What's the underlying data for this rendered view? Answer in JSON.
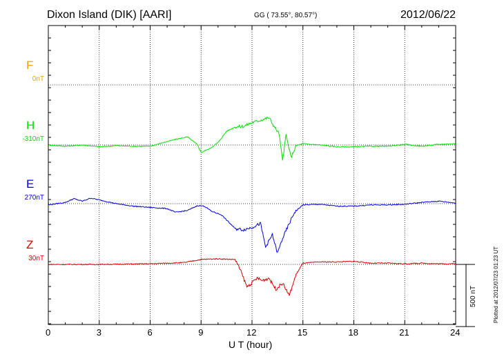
{
  "header": {
    "station": "Dixon Island (DIK)  [AARI]",
    "coords": "GG ( 73.55°,  80.57°)",
    "date": "2012/06/22"
  },
  "plotted_note": "Plotted at 2012/07/23 01:23 UT",
  "scale_label": "500 nT",
  "chart_data": {
    "type": "line",
    "xlabel": "U T (hour)",
    "xlim": [
      0,
      24
    ],
    "xticks": [
      "0",
      "3",
      "6",
      "9",
      "12",
      "15",
      "18",
      "21",
      "24"
    ],
    "grid": true,
    "scale_nT": 500,
    "channels": [
      {
        "letter": "F",
        "base": "0nT",
        "color": "#f5a000",
        "points": []
      },
      {
        "letter": "H",
        "base": "-310nT",
        "color": "#00e000",
        "points": [
          [
            0,
            0
          ],
          [
            1,
            -10
          ],
          [
            2,
            0
          ],
          [
            3,
            -15
          ],
          [
            4,
            -5
          ],
          [
            5,
            -10
          ],
          [
            6,
            -10
          ],
          [
            6.8,
            20
          ],
          [
            7.5,
            45
          ],
          [
            8.2,
            65
          ],
          [
            8.8,
            0
          ],
          [
            9.0,
            -60
          ],
          [
            9.5,
            -30
          ],
          [
            10.0,
            20
          ],
          [
            10.5,
            110
          ],
          [
            11.0,
            145
          ],
          [
            11.5,
            150
          ],
          [
            12.0,
            180
          ],
          [
            12.5,
            200
          ],
          [
            13.0,
            220
          ],
          [
            13.3,
            150
          ],
          [
            13.6,
            90
          ],
          [
            13.8,
            -130
          ],
          [
            14.0,
            80
          ],
          [
            14.3,
            -100
          ],
          [
            14.6,
            -5
          ],
          [
            15.0,
            10
          ],
          [
            16,
            0
          ],
          [
            17,
            -15
          ],
          [
            18,
            -15
          ],
          [
            19,
            -10
          ],
          [
            20,
            -10
          ],
          [
            21,
            5
          ],
          [
            22,
            -10
          ],
          [
            23,
            5
          ],
          [
            24,
            10
          ]
        ]
      },
      {
        "letter": "E",
        "base": "270nT",
        "color": "#0000dd",
        "points": [
          [
            0,
            -10
          ],
          [
            1,
            10
          ],
          [
            1.5,
            40
          ],
          [
            2,
            20
          ],
          [
            2.5,
            45
          ],
          [
            3,
            30
          ],
          [
            4,
            0
          ],
          [
            5,
            -20
          ],
          [
            6,
            -30
          ],
          [
            7,
            -40
          ],
          [
            7.5,
            -70
          ],
          [
            8.2,
            -55
          ],
          [
            8.8,
            -15
          ],
          [
            9.2,
            -20
          ],
          [
            9.6,
            -60
          ],
          [
            10.2,
            -90
          ],
          [
            11,
            -200
          ],
          [
            11.5,
            -210
          ],
          [
            12,
            -190
          ],
          [
            12.5,
            -160
          ],
          [
            12.8,
            -350
          ],
          [
            13.2,
            -250
          ],
          [
            13.5,
            -400
          ],
          [
            13.8,
            -280
          ],
          [
            14.2,
            -160
          ],
          [
            14.5,
            -70
          ],
          [
            15,
            -10
          ],
          [
            16,
            -5
          ],
          [
            17,
            -20
          ],
          [
            18,
            -20
          ],
          [
            19,
            -10
          ],
          [
            20,
            -10
          ],
          [
            21,
            -5
          ],
          [
            22,
            10
          ],
          [
            23,
            20
          ],
          [
            24,
            5
          ]
        ]
      },
      {
        "letter": "Z",
        "base": "30nT",
        "color": "#dd0000",
        "points": [
          [
            0,
            0
          ],
          [
            3,
            0
          ],
          [
            6,
            5
          ],
          [
            8,
            15
          ],
          [
            9,
            40
          ],
          [
            10,
            45
          ],
          [
            11,
            40
          ],
          [
            11.3,
            -40
          ],
          [
            11.7,
            -180
          ],
          [
            12.0,
            -150
          ],
          [
            12.3,
            -110
          ],
          [
            12.6,
            -130
          ],
          [
            13.0,
            -110
          ],
          [
            13.4,
            -200
          ],
          [
            13.8,
            -150
          ],
          [
            14.2,
            -250
          ],
          [
            14.6,
            -80
          ],
          [
            15,
            10
          ],
          [
            16,
            20
          ],
          [
            17,
            20
          ],
          [
            18,
            25
          ],
          [
            19,
            10
          ],
          [
            20,
            10
          ],
          [
            21,
            5
          ],
          [
            22,
            10
          ],
          [
            23,
            5
          ],
          [
            24,
            5
          ]
        ]
      }
    ]
  }
}
